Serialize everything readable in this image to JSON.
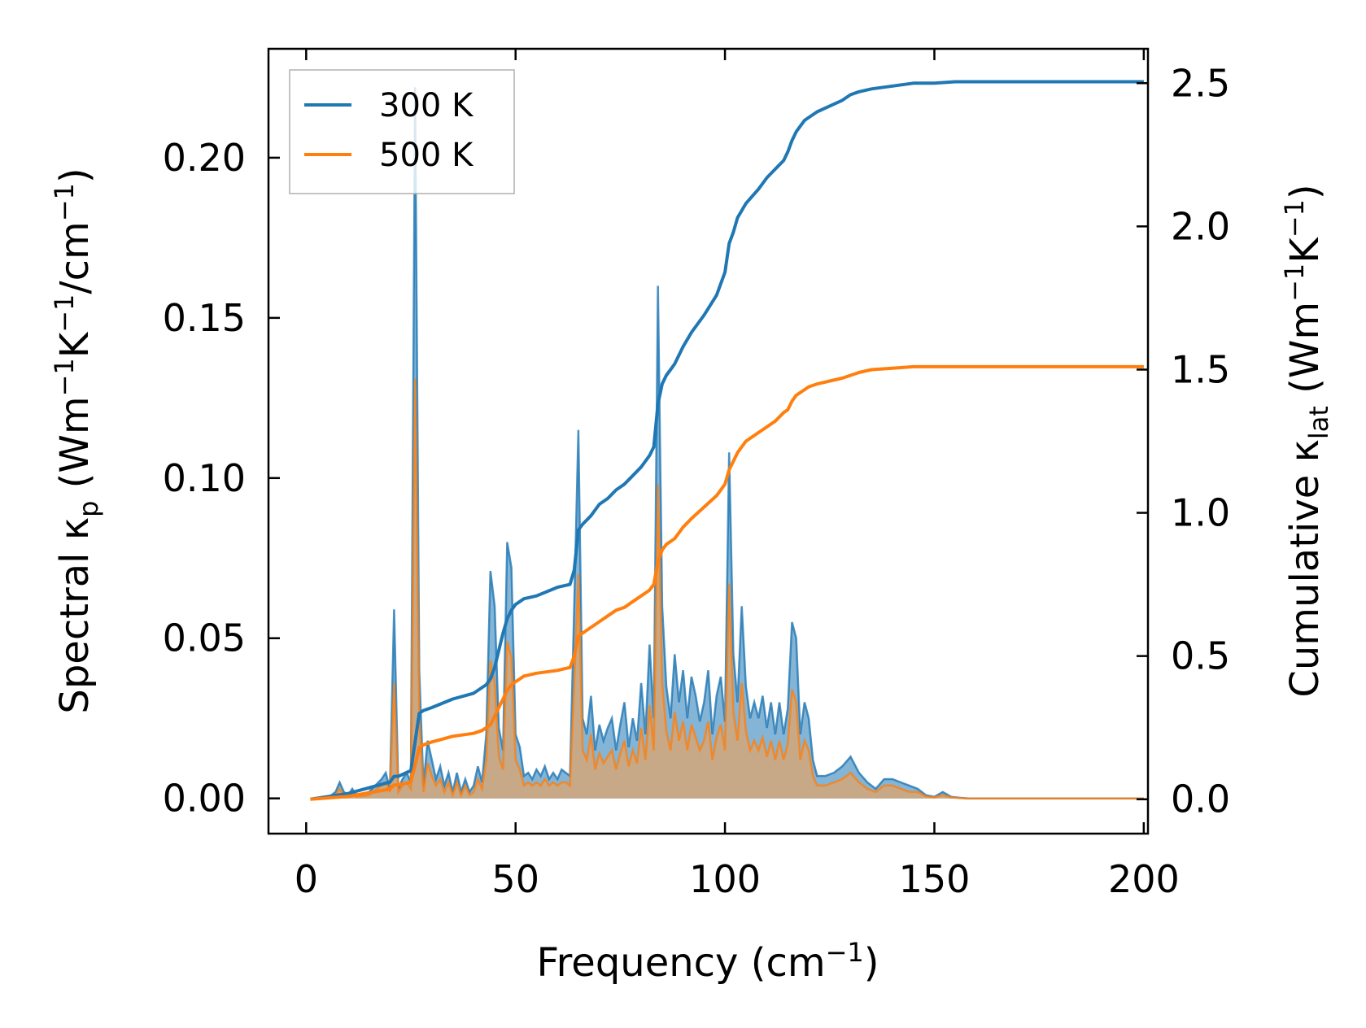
{
  "chart_data": {
    "type": "line",
    "title": "",
    "xlabel": {
      "main": "Frequency (cm",
      "sup": "−1",
      "tail": ")"
    },
    "ylabel_left": {
      "prefix": "Spectral κ",
      "sub": "p",
      "mid1": " (Wm",
      "sup1": "−1",
      "mid2": "K",
      "sup2": "−1",
      "mid3": "/cm",
      "sup3": "−1",
      "tail": ")"
    },
    "ylabel_right": {
      "prefix": "Cumulative κ",
      "sub": "lat",
      "mid1": " (Wm",
      "sup1": "−1",
      "mid2": "K",
      "sup2": "−1",
      "tail": ")"
    },
    "xlim": [
      -9,
      201
    ],
    "ylim_left": [
      -0.011,
      0.234
    ],
    "ylim_right": [
      -0.12,
      2.62
    ],
    "x_ticks": [
      0,
      50,
      100,
      150,
      200
    ],
    "x_tick_labels": [
      "0",
      "50",
      "100",
      "150",
      "200"
    ],
    "y_left_ticks": [
      0,
      0.05,
      0.1,
      0.15,
      0.2
    ],
    "y_left_tick_labels": [
      "0.00",
      "0.05",
      "0.10",
      "0.15",
      "0.20"
    ],
    "y_right_ticks": [
      0,
      0.5,
      1.0,
      1.5,
      2.0,
      2.5
    ],
    "y_right_tick_labels": [
      "0.0",
      "0.5",
      "1.0",
      "1.5",
      "2.0",
      "2.5"
    ],
    "legend": {
      "position": "top-left",
      "entries": [
        "300 K",
        "500 K"
      ]
    },
    "colors": {
      "300K": "#1f77b4",
      "500K": "#ff7f0e",
      "fill300": "#1f77b4",
      "fill500": "#d2a679"
    },
    "spectral_x": [
      1,
      5,
      7,
      8,
      9,
      10,
      11,
      12,
      15,
      18,
      19,
      20,
      21,
      22,
      23,
      24,
      25,
      26,
      27,
      28,
      29,
      30,
      31,
      32,
      33,
      34,
      35,
      36,
      37,
      38,
      39,
      40,
      41,
      42,
      43,
      44,
      45,
      46,
      47,
      48,
      49,
      50,
      51,
      52,
      53,
      54,
      55,
      56,
      57,
      58,
      59,
      60,
      61,
      62,
      63,
      64,
      65,
      66,
      67,
      68,
      69,
      70,
      71,
      72,
      73,
      74,
      75,
      76,
      77,
      78,
      79,
      80,
      81,
      82,
      83,
      84,
      85,
      86,
      87,
      88,
      89,
      90,
      91,
      92,
      93,
      94,
      95,
      96,
      97,
      98,
      99,
      100,
      101,
      102,
      103,
      104,
      105,
      106,
      107,
      108,
      109,
      110,
      111,
      112,
      113,
      114,
      115,
      116,
      117,
      118,
      119,
      120,
      121,
      122,
      124,
      126,
      128,
      130,
      132,
      134,
      136,
      138,
      140,
      142,
      144,
      146,
      148,
      150,
      152,
      154,
      156,
      158,
      160,
      200
    ],
    "spectral_300K": [
      0,
      0,
      0.002,
      0.005,
      0.002,
      0.001,
      0.003,
      0.001,
      0.002,
      0.006,
      0.008,
      0.003,
      0.059,
      0.003,
      0.006,
      0.008,
      0.005,
      0.222,
      0.04,
      0.004,
      0.018,
      0.012,
      0.006,
      0.01,
      0.004,
      0.008,
      0.002,
      0.008,
      0.002,
      0.006,
      0.002,
      0.004,
      0.01,
      0.005,
      0.02,
      0.071,
      0.06,
      0.022,
      0.015,
      0.08,
      0.072,
      0.02,
      0.016,
      0.007,
      0.008,
      0.006,
      0.009,
      0.007,
      0.01,
      0.006,
      0.008,
      0.006,
      0.009,
      0.008,
      0.007,
      0.06,
      0.115,
      0.025,
      0.02,
      0.032,
      0.015,
      0.023,
      0.018,
      0.022,
      0.025,
      0.015,
      0.023,
      0.03,
      0.016,
      0.025,
      0.018,
      0.036,
      0.02,
      0.048,
      0.025,
      0.16,
      0.06,
      0.035,
      0.025,
      0.045,
      0.03,
      0.04,
      0.025,
      0.038,
      0.032,
      0.024,
      0.03,
      0.04,
      0.02,
      0.032,
      0.038,
      0.024,
      0.108,
      0.045,
      0.03,
      0.06,
      0.035,
      0.025,
      0.03,
      0.025,
      0.032,
      0.022,
      0.03,
      0.02,
      0.03,
      0.02,
      0.028,
      0.055,
      0.05,
      0.02,
      0.03,
      0.025,
      0.012,
      0.007,
      0.007,
      0.008,
      0.01,
      0.013,
      0.008,
      0.005,
      0.003,
      0.006,
      0.006,
      0.005,
      0.004,
      0.003,
      0.001,
      0.0005,
      0.002,
      0.0005,
      0.0002,
      0,
      0,
      0
    ],
    "spectral_500K": [
      0,
      0,
      0.001,
      0.003,
      0.001,
      0.0005,
      0.002,
      0.0005,
      0.001,
      0.004,
      0.005,
      0.002,
      0.036,
      0.002,
      0.004,
      0.005,
      0.003,
      0.131,
      0.025,
      0.002,
      0.011,
      0.007,
      0.004,
      0.006,
      0.002,
      0.005,
      0.001,
      0.005,
      0.001,
      0.004,
      0.001,
      0.002,
      0.006,
      0.003,
      0.012,
      0.043,
      0.036,
      0.013,
      0.009,
      0.049,
      0.044,
      0.012,
      0.009,
      0.004,
      0.005,
      0.004,
      0.005,
      0.004,
      0.006,
      0.004,
      0.005,
      0.004,
      0.005,
      0.005,
      0.004,
      0.036,
      0.07,
      0.015,
      0.012,
      0.02,
      0.009,
      0.014,
      0.011,
      0.013,
      0.015,
      0.009,
      0.014,
      0.018,
      0.01,
      0.015,
      0.011,
      0.022,
      0.012,
      0.029,
      0.015,
      0.098,
      0.036,
      0.021,
      0.015,
      0.027,
      0.018,
      0.024,
      0.015,
      0.023,
      0.019,
      0.015,
      0.018,
      0.024,
      0.012,
      0.019,
      0.023,
      0.015,
      0.067,
      0.027,
      0.018,
      0.036,
      0.021,
      0.015,
      0.018,
      0.015,
      0.019,
      0.013,
      0.018,
      0.012,
      0.018,
      0.012,
      0.017,
      0.034,
      0.03,
      0.012,
      0.018,
      0.015,
      0.007,
      0.004,
      0.004,
      0.005,
      0.006,
      0.008,
      0.005,
      0.003,
      0.002,
      0.004,
      0.004,
      0.003,
      0.002,
      0.002,
      0.0006,
      0.0003,
      0.001,
      0.0003,
      0.0001,
      0,
      0,
      0
    ],
    "cumulative_x": [
      1,
      10,
      20,
      21,
      22,
      25,
      26,
      27,
      28,
      30,
      35,
      40,
      42,
      43,
      44,
      45,
      46,
      47,
      48,
      49,
      50,
      52,
      55,
      60,
      63,
      64,
      65,
      66,
      68,
      70,
      72,
      74,
      76,
      78,
      80,
      82,
      83,
      84,
      85,
      86,
      87,
      88,
      90,
      92,
      95,
      98,
      100,
      101,
      102,
      103,
      105,
      108,
      110,
      112,
      114,
      115,
      116,
      117,
      118,
      119,
      120,
      122,
      125,
      128,
      130,
      132,
      135,
      140,
      145,
      150,
      155,
      160,
      200
    ],
    "cumulative_300K": [
      0,
      0.02,
      0.06,
      0.08,
      0.08,
      0.1,
      0.2,
      0.3,
      0.31,
      0.32,
      0.35,
      0.37,
      0.39,
      0.4,
      0.42,
      0.46,
      0.52,
      0.58,
      0.63,
      0.66,
      0.68,
      0.7,
      0.71,
      0.74,
      0.75,
      0.8,
      0.94,
      0.96,
      0.99,
      1.03,
      1.05,
      1.08,
      1.1,
      1.13,
      1.16,
      1.2,
      1.23,
      1.38,
      1.45,
      1.48,
      1.5,
      1.52,
      1.58,
      1.63,
      1.69,
      1.76,
      1.84,
      1.94,
      1.98,
      2.03,
      2.08,
      2.13,
      2.17,
      2.2,
      2.23,
      2.26,
      2.3,
      2.33,
      2.35,
      2.37,
      2.38,
      2.4,
      2.42,
      2.44,
      2.46,
      2.47,
      2.48,
      2.49,
      2.5,
      2.5,
      2.505,
      2.505,
      2.505
    ],
    "cumulative_500K": [
      0,
      0.01,
      0.035,
      0.05,
      0.05,
      0.06,
      0.12,
      0.18,
      0.19,
      0.2,
      0.22,
      0.23,
      0.24,
      0.25,
      0.26,
      0.29,
      0.32,
      0.35,
      0.38,
      0.4,
      0.41,
      0.43,
      0.44,
      0.45,
      0.46,
      0.5,
      0.57,
      0.58,
      0.6,
      0.62,
      0.64,
      0.66,
      0.67,
      0.69,
      0.71,
      0.73,
      0.75,
      0.83,
      0.87,
      0.89,
      0.9,
      0.91,
      0.95,
      0.98,
      1.02,
      1.06,
      1.1,
      1.15,
      1.18,
      1.21,
      1.25,
      1.28,
      1.3,
      1.32,
      1.35,
      1.36,
      1.39,
      1.41,
      1.42,
      1.43,
      1.44,
      1.45,
      1.46,
      1.47,
      1.48,
      1.49,
      1.5,
      1.505,
      1.51,
      1.51,
      1.51,
      1.51,
      1.51
    ]
  }
}
